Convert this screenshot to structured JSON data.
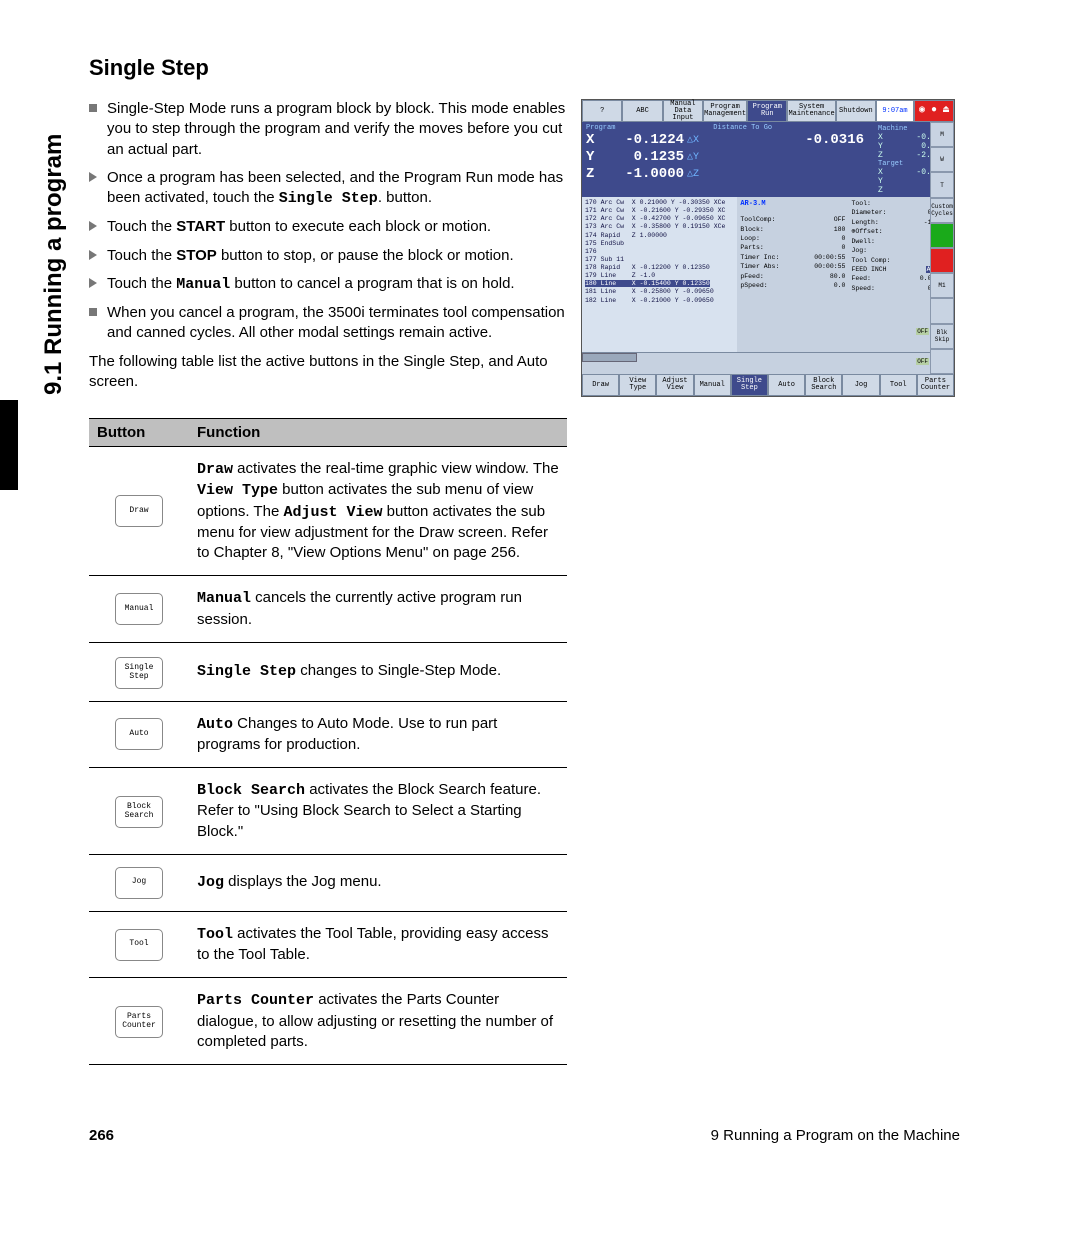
{
  "side_tab": "9.1 Running a program",
  "title": "Single Step",
  "bullets": [
    {
      "kind": "sq",
      "html": "Single-Step Mode runs a program block by block. This mode enables you to step through the program and verify the moves before you cut an actual part."
    },
    {
      "kind": "tr",
      "html": "Once a program has been selected, and the Program Run mode has been activated, touch the <span class='mono'>Single Step</span>. button."
    },
    {
      "kind": "tr",
      "html": "Touch the <span class='bold'>START</span> button to execute each block or motion."
    },
    {
      "kind": "tr",
      "html": "Touch the <span class='bold'>STOP</span> button to stop, or pause the block or motion."
    },
    {
      "kind": "tr",
      "html": "Touch the <span class='mono'>Manual</span> button to cancel a program that is on hold."
    },
    {
      "kind": "sq",
      "html": "When you cancel a program, the 3500i terminates tool compensation and canned cycles. All other modal settings remain active."
    }
  ],
  "after_para": "The following table list the active buttons in the Single Step, and Auto screen.",
  "table": {
    "headers": [
      "Button",
      "Function"
    ],
    "rows": [
      {
        "btn": "Draw",
        "fn": "<span class='mono'>Draw</span> activates the real-time graphic view window. The <span class='mono'>View Type</span> button activates the sub menu of view options. The <span class='mono'>Adjust View</span> button activates the sub menu for view adjustment for the Draw screen. Refer to Chapter 8, \"View Options Menu\" on page 256."
      },
      {
        "btn": "Manual",
        "fn": "<span class='mono'>Manual</span> cancels the currently active program run session."
      },
      {
        "btn": "Single\nStep",
        "fn": "<span class='mono'>Single Step</span> changes to Single-Step Mode."
      },
      {
        "btn": "Auto",
        "fn": "<span class='mono'>Auto</span> Changes to Auto Mode. Use to run part programs for production."
      },
      {
        "btn": "Block\nSearch",
        "fn": "<span class='mono'>Block Search</span> activates the Block Search feature. Refer to \"Using Block Search to Select a Starting Block.\""
      },
      {
        "btn": "Jog",
        "fn": "<span class='mono'>Jog</span> displays the Jog menu."
      },
      {
        "btn": "Tool",
        "fn": "<span class='mono'>Tool</span> activates the Tool Table, providing easy access to the Tool Table."
      },
      {
        "btn": "Parts\nCounter",
        "fn": "<span class='mono'>Parts Counter</span> activates the Parts Counter dialogue, to allow adjusting or resetting the number of completed parts."
      }
    ]
  },
  "footer": {
    "page": "266",
    "chapter": "9 Running a Program on the Machine"
  },
  "screenshot": {
    "topbar": [
      {
        "t": "?",
        "on": false
      },
      {
        "t": "ABC",
        "on": false
      },
      {
        "t": "Manual Data\nInput",
        "on": false
      },
      {
        "t": "Program\nManagement",
        "on": false
      },
      {
        "t": "Program Run",
        "on": true
      },
      {
        "t": "System\nMaintenance",
        "on": false
      },
      {
        "t": "Shutdown",
        "on": false
      }
    ],
    "clock": "9:07am",
    "program_label": "Program",
    "dist_label": "Distance To Go",
    "dro": [
      {
        "axis": "X",
        "val": "-0.1224",
        "sym": "△X",
        "dist": "-0.0316"
      },
      {
        "axis": "Y",
        "val": "0.1235",
        "sym": "△Y",
        "dist": ""
      },
      {
        "axis": "Z",
        "val": "-1.0000",
        "sym": "△Z",
        "dist": ""
      }
    ],
    "machine": {
      "label": "Machine",
      "X": "-0.1224",
      "Y": "0.1235",
      "Z": "-2.0000"
    },
    "target": {
      "label": "Target",
      "X": "-0.1540",
      "Y": "",
      "Z": ""
    },
    "prog_lines": "170 Arc Cw  X 0.21000 Y -0.30350 XCe\n171 Arc Cw  X -0.21600 Y -0.29350 XC\n172 Arc Cw  X -0.42700 Y -0.09650 XC\n173 Arc Cw  X -0.35800 Y 0.19150 XCe\n174 Rapid   Z 1.00000\n175 EndSub\n176\n177 Sub 11\n178 Rapid   X -0.12200 Y 0.12350\n179 Line    Z -1.0\n180 Line    X -0.15400 Y 0.12350\n181 Line    X -0.25800 Y -0.09650\n182 Line    X -0.21000 Y -0.09650",
    "hl_line": "180 Line    X -0.15400 Y 0.12350",
    "mid_title": "AR-3.M",
    "mid_rows": [
      [
        "ToolComp:",
        "OFF"
      ],
      [
        "Block:",
        "180"
      ],
      [
        "Loop:",
        "0"
      ],
      [
        "Parts:",
        "0"
      ],
      [
        "Timer Inc:",
        "00:00:55"
      ],
      [
        "Timer Abs:",
        "00:00:55"
      ],
      [
        "pFeed:",
        "80.0"
      ],
      [
        "pSpeed:",
        "0.0"
      ]
    ],
    "right_rows": [
      [
        "Tool:",
        "1"
      ],
      [
        "Diameter:",
        "0.0100"
      ],
      [
        "Length:",
        "-1.0900"
      ],
      [
        "⊕Offset:",
        ""
      ],
      [
        "Dwell:",
        ""
      ],
      [
        "Jog:",
        "FEED"
      ],
      [
        "Tool Comp:",
        "OFF"
      ],
      [
        "FEED  INCH",
        "ABS   XY"
      ],
      [
        "Feed:",
        "0.0 100%"
      ],
      [
        "Speed:",
        "0 100%"
      ]
    ],
    "botbar": [
      {
        "t": "Draw",
        "on": false
      },
      {
        "t": "View\nType",
        "on": false
      },
      {
        "t": "Adjust\nView",
        "on": false
      },
      {
        "t": "Manual",
        "on": false
      },
      {
        "t": "Single\nStep",
        "on": true
      },
      {
        "t": "Auto",
        "on": false
      },
      {
        "t": "Block\nSearch",
        "on": false
      },
      {
        "t": "Jog",
        "on": false
      },
      {
        "t": "Tool",
        "on": false
      },
      {
        "t": "Parts\nCounter",
        "on": false
      }
    ],
    "right_icons": [
      "M",
      "W",
      "T",
      "Custom\nCycles",
      "",
      "",
      "M1",
      "",
      "Blk Skip",
      ""
    ],
    "off_labels": [
      "OFF",
      "OFF"
    ]
  }
}
